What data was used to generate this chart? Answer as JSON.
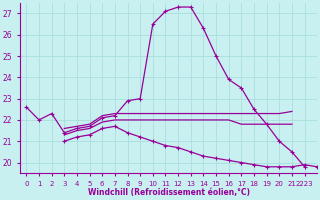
{
  "xlabel": "Windchill (Refroidissement éolien,°C)",
  "xlim": [
    -0.5,
    23
  ],
  "ylim": [
    19.5,
    27.5
  ],
  "yticks": [
    20,
    21,
    22,
    23,
    24,
    25,
    26,
    27
  ],
  "xtick_labels": [
    "0",
    "1",
    "2",
    "3",
    "4",
    "5",
    "6",
    "7",
    "8",
    "9",
    "10",
    "11",
    "12",
    "13",
    "14",
    "15",
    "16",
    "17",
    "18",
    "19",
    "20",
    "21",
    "2223"
  ],
  "xtick_pos": [
    0,
    1,
    2,
    3,
    4,
    5,
    6,
    7,
    8,
    9,
    10,
    11,
    12,
    13,
    14,
    15,
    16,
    17,
    18,
    19,
    20,
    21,
    22
  ],
  "background_color": "#c8f0f0",
  "line_color": "#990099",
  "grid_color": "#aadddd",
  "series": [
    {
      "x": [
        0,
        1,
        2,
        3,
        4,
        5,
        6,
        7,
        8,
        9,
        10,
        11,
        12,
        13,
        14,
        15,
        16,
        17,
        18,
        19,
        20,
        21,
        22
      ],
      "y": [
        22.6,
        22.0,
        22.3,
        21.4,
        21.6,
        21.7,
        22.1,
        22.2,
        22.9,
        23.0,
        26.5,
        27.1,
        27.3,
        27.3,
        26.3,
        25.0,
        23.9,
        23.5,
        22.5,
        21.8,
        21.0,
        20.5,
        19.8
      ],
      "markers": true
    },
    {
      "x": [
        3,
        4,
        5,
        6,
        7,
        8,
        9,
        10,
        11,
        12,
        13,
        14,
        15,
        16,
        17,
        18,
        19,
        20,
        21
      ],
      "y": [
        21.6,
        21.7,
        21.8,
        22.2,
        22.3,
        22.3,
        22.3,
        22.3,
        22.3,
        22.3,
        22.3,
        22.3,
        22.3,
        22.3,
        22.3,
        22.3,
        22.3,
        22.3,
        22.4
      ],
      "markers": false
    },
    {
      "x": [
        3,
        4,
        5,
        6,
        7,
        8,
        9,
        10,
        11,
        12,
        13,
        14,
        15,
        16,
        17,
        18,
        19,
        20,
        21
      ],
      "y": [
        21.3,
        21.5,
        21.6,
        21.9,
        22.0,
        22.0,
        22.0,
        22.0,
        22.0,
        22.0,
        22.0,
        22.0,
        22.0,
        22.0,
        21.8,
        21.8,
        21.8,
        21.8,
        21.8
      ],
      "markers": false
    },
    {
      "x": [
        3,
        4,
        5,
        6,
        7,
        8,
        9,
        10,
        11,
        12,
        13,
        14,
        15,
        16,
        17,
        18,
        19,
        20,
        21,
        22,
        23
      ],
      "y": [
        21.0,
        21.2,
        21.3,
        21.6,
        21.7,
        21.4,
        21.2,
        21.0,
        20.8,
        20.7,
        20.5,
        20.3,
        20.2,
        20.1,
        20.0,
        19.9,
        19.8,
        19.8,
        19.8,
        19.9,
        19.8
      ],
      "markers": true
    }
  ]
}
